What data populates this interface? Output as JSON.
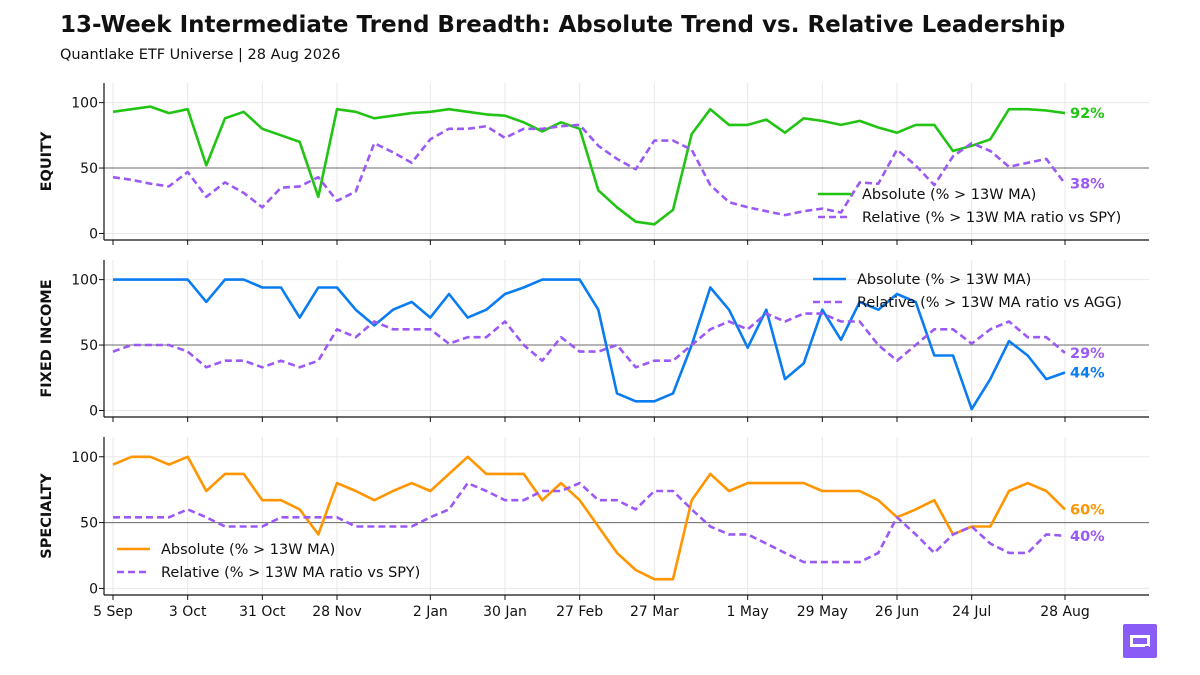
{
  "title": "13-Week Intermediate Trend Breadth: Absolute Trend vs. Relative Leadership",
  "subtitle": "Quantlake ETF Universe  |  28 Aug 2026",
  "colors": {
    "equity": "#22c414",
    "fixed_income": "#0a7cf2",
    "specialty": "#ff9500",
    "relative": "#9b59f5",
    "reference_line": "#6b6b6b",
    "grid": "#e8e8e8",
    "logo": "#8a5cf6"
  },
  "logo_icon": "quantlake-logo-icon",
  "chart_data": [
    {
      "type": "line",
      "panel_label": "EQUITY",
      "x": [
        "2025-09-05",
        "2025-09-12",
        "2025-09-19",
        "2025-09-26",
        "2025-10-03",
        "2025-10-10",
        "2025-10-17",
        "2025-10-24",
        "2025-10-31",
        "2025-11-07",
        "2025-11-14",
        "2025-11-21",
        "2025-11-28",
        "2025-12-05",
        "2025-12-12",
        "2025-12-19",
        "2025-12-26",
        "2026-01-02",
        "2026-01-09",
        "2026-01-16",
        "2026-01-23",
        "2026-01-30",
        "2026-02-06",
        "2026-02-13",
        "2026-02-20",
        "2026-02-27",
        "2026-03-06",
        "2026-03-13",
        "2026-03-20",
        "2026-03-27",
        "2026-04-03",
        "2026-04-10",
        "2026-04-17",
        "2026-04-24",
        "2026-05-01",
        "2026-05-08",
        "2026-05-15",
        "2026-05-22",
        "2026-05-29",
        "2026-06-05",
        "2026-06-12",
        "2026-06-19",
        "2026-06-26",
        "2026-07-03",
        "2026-07-10",
        "2026-07-17",
        "2026-07-24",
        "2026-07-31",
        "2026-08-07",
        "2026-08-14",
        "2026-08-21",
        "2026-08-28"
      ],
      "series": [
        {
          "name": "Absolute (% > 13W MA)",
          "style": "solid",
          "values": [
            93,
            95,
            97,
            92,
            95,
            52,
            88,
            93,
            80,
            75,
            70,
            28,
            95,
            93,
            88,
            90,
            92,
            93,
            95,
            93,
            91,
            90,
            85,
            78,
            85,
            80,
            33,
            20,
            9,
            7,
            18,
            76,
            95,
            83,
            83,
            87,
            77,
            88,
            86,
            83,
            86,
            81,
            77,
            83,
            83,
            63,
            67,
            72,
            95,
            95,
            94,
            92
          ]
        },
        {
          "name": "Relative (% > 13W MA ratio vs SPY)",
          "style": "dashed",
          "values": [
            43,
            41,
            38,
            36,
            47,
            28,
            39,
            31,
            20,
            35,
            36,
            43,
            25,
            32,
            69,
            62,
            54,
            72,
            80,
            80,
            82,
            73,
            80,
            80,
            82,
            83,
            67,
            57,
            49,
            71,
            71,
            64,
            37,
            24,
            20,
            17,
            14,
            17,
            19,
            16,
            39,
            38,
            64,
            52,
            37,
            59,
            69,
            63,
            51,
            54,
            57,
            38
          ]
        }
      ],
      "end_labels": [
        "92%",
        "38%"
      ],
      "yticks": [
        0,
        50,
        100
      ],
      "ylim": [
        -5,
        115
      ],
      "reference_line": 50,
      "legend_position": "lower-right"
    },
    {
      "type": "line",
      "panel_label": "FIXED INCOME",
      "x": [
        "2025-09-05",
        "2025-09-12",
        "2025-09-19",
        "2025-09-26",
        "2025-10-03",
        "2025-10-10",
        "2025-10-17",
        "2025-10-24",
        "2025-10-31",
        "2025-11-07",
        "2025-11-14",
        "2025-11-21",
        "2025-11-28",
        "2025-12-05",
        "2025-12-12",
        "2025-12-19",
        "2025-12-26",
        "2026-01-02",
        "2026-01-09",
        "2026-01-16",
        "2026-01-23",
        "2026-01-30",
        "2026-02-06",
        "2026-02-13",
        "2026-02-20",
        "2026-02-27",
        "2026-03-06",
        "2026-03-13",
        "2026-03-20",
        "2026-03-27",
        "2026-04-03",
        "2026-04-10",
        "2026-04-17",
        "2026-04-24",
        "2026-05-01",
        "2026-05-08",
        "2026-05-15",
        "2026-05-22",
        "2026-05-29",
        "2026-06-05",
        "2026-06-12",
        "2026-06-19",
        "2026-06-26",
        "2026-07-03",
        "2026-07-10",
        "2026-07-17",
        "2026-07-24",
        "2026-07-31",
        "2026-08-07",
        "2026-08-14",
        "2026-08-21",
        "2026-08-28"
      ],
      "series": [
        {
          "name": "Absolute (% > 13W MA)",
          "style": "solid",
          "values": [
            100,
            100,
            100,
            100,
            100,
            83,
            100,
            100,
            94,
            94,
            71,
            94,
            94,
            77,
            65,
            77,
            83,
            71,
            89,
            71,
            77,
            89,
            94,
            100,
            100,
            100,
            77,
            13,
            7,
            7,
            13,
            50,
            94,
            77,
            48,
            77,
            24,
            36,
            77,
            54,
            83,
            77,
            89,
            83,
            42,
            42,
            1,
            24,
            53,
            42,
            24,
            29
          ]
        },
        {
          "name": "Relative (% > 13W MA ratio vs AGG)",
          "style": "dashed",
          "values": [
            45,
            50,
            50,
            50,
            45,
            33,
            38,
            38,
            33,
            38,
            33,
            38,
            62,
            56,
            68,
            62,
            62,
            62,
            51,
            56,
            56,
            68,
            50,
            38,
            56,
            45,
            45,
            50,
            33,
            38,
            38,
            50,
            62,
            68,
            62,
            74,
            68,
            74,
            74,
            68,
            68,
            50,
            38,
            50,
            62,
            62,
            51,
            62,
            68,
            56,
            56,
            44
          ]
        }
      ],
      "end_labels": [
        "44%",
        "29%"
      ],
      "yticks": [
        0,
        50,
        100
      ],
      "ylim": [
        -5,
        115
      ],
      "reference_line": 50,
      "legend_position": "upper-right"
    },
    {
      "type": "line",
      "panel_label": "SPECIALTY",
      "x": [
        "2025-09-05",
        "2025-09-12",
        "2025-09-19",
        "2025-09-26",
        "2025-10-03",
        "2025-10-10",
        "2025-10-17",
        "2025-10-24",
        "2025-10-31",
        "2025-11-07",
        "2025-11-14",
        "2025-11-21",
        "2025-11-28",
        "2025-12-05",
        "2025-12-12",
        "2025-12-19",
        "2025-12-26",
        "2026-01-02",
        "2026-01-09",
        "2026-01-16",
        "2026-01-23",
        "2026-01-30",
        "2026-02-06",
        "2026-02-13",
        "2026-02-20",
        "2026-02-27",
        "2026-03-06",
        "2026-03-13",
        "2026-03-20",
        "2026-03-27",
        "2026-04-03",
        "2026-04-10",
        "2026-04-17",
        "2026-04-24",
        "2026-05-01",
        "2026-05-08",
        "2026-05-15",
        "2026-05-22",
        "2026-05-29",
        "2026-06-05",
        "2026-06-12",
        "2026-06-19",
        "2026-06-26",
        "2026-07-03",
        "2026-07-10",
        "2026-07-17",
        "2026-07-24",
        "2026-07-31",
        "2026-08-07",
        "2026-08-14",
        "2026-08-21",
        "2026-08-28"
      ],
      "series": [
        {
          "name": "Absolute (% > 13W MA)",
          "style": "solid",
          "values": [
            94,
            100,
            100,
            94,
            100,
            74,
            87,
            87,
            67,
            67,
            60,
            41,
            80,
            74,
            67,
            74,
            80,
            74,
            87,
            100,
            87,
            87,
            87,
            67,
            80,
            67,
            47,
            27,
            14,
            7,
            7,
            67,
            87,
            74,
            80,
            80,
            80,
            80,
            74,
            74,
            74,
            67,
            54,
            60,
            67,
            41,
            47,
            47,
            74,
            80,
            74,
            60
          ]
        },
        {
          "name": "Relative (% > 13W MA ratio vs SPY)",
          "style": "dashed",
          "values": [
            54,
            54,
            54,
            54,
            60,
            54,
            47,
            47,
            47,
            54,
            54,
            54,
            54,
            47,
            47,
            47,
            47,
            54,
            60,
            80,
            74,
            67,
            67,
            74,
            74,
            80,
            67,
            67,
            60,
            74,
            74,
            60,
            47,
            41,
            41,
            34,
            27,
            20,
            20,
            20,
            20,
            27,
            54,
            41,
            27,
            41,
            47,
            34,
            27,
            27,
            41,
            40
          ]
        }
      ],
      "end_labels": [
        "60%",
        "40%"
      ],
      "yticks": [
        0,
        50,
        100
      ],
      "ylim": [
        -5,
        115
      ],
      "reference_line": 50,
      "legend_position": "lower-left"
    }
  ],
  "x_ticks": [
    {
      "date": "2025-09-05",
      "label": "5 Sep"
    },
    {
      "date": "2025-10-03",
      "label": "3 Oct"
    },
    {
      "date": "2025-10-31",
      "label": "31 Oct"
    },
    {
      "date": "2025-11-28",
      "label": "28 Nov"
    },
    {
      "date": "2026-01-02",
      "label": "2 Jan"
    },
    {
      "date": "2026-01-30",
      "label": "30 Jan"
    },
    {
      "date": "2026-02-27",
      "label": "27 Feb"
    },
    {
      "date": "2026-03-27",
      "label": "27 Mar"
    },
    {
      "date": "2026-05-01",
      "label": "1 May"
    },
    {
      "date": "2026-05-29",
      "label": "29 May"
    },
    {
      "date": "2026-06-26",
      "label": "26 Jun"
    },
    {
      "date": "2026-07-24",
      "label": "24 Jul"
    },
    {
      "date": "2026-08-28",
      "label": "28 Aug"
    }
  ]
}
